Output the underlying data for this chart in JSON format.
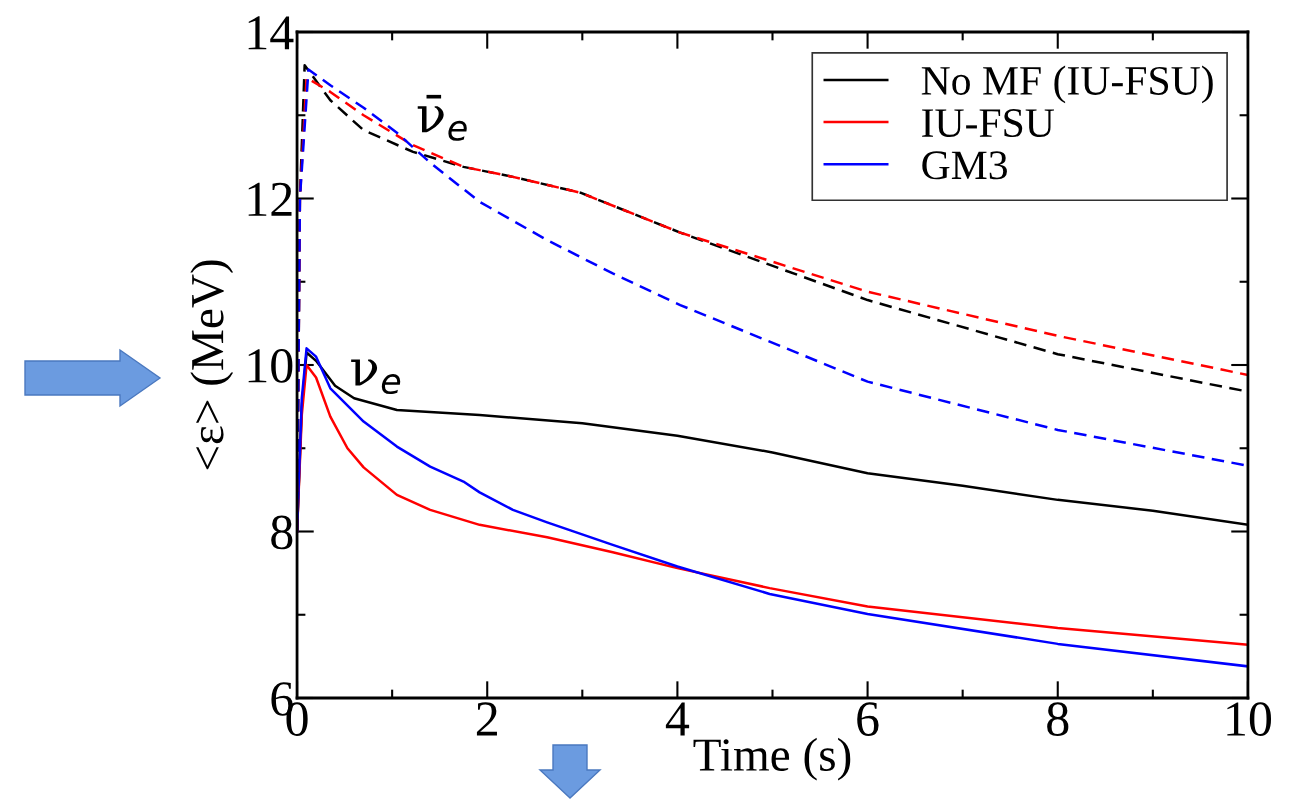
{
  "chart_data": {
    "type": "line",
    "xlabel": "Time (s)",
    "ylabel": "<ε> (MeV)",
    "xlim": [
      0,
      10
    ],
    "ylim": [
      6,
      14
    ],
    "xticks": [
      0,
      {
        "value": 1,
        "label": null
      },
      2,
      {
        "value": 3,
        "label": null
      },
      4,
      {
        "value": 5,
        "label": null
      },
      6,
      {
        "value": 7,
        "label": null
      },
      8,
      {
        "value": 9,
        "label": null
      },
      10
    ],
    "yticks": [
      6,
      {
        "value": 7,
        "label": null
      },
      8,
      {
        "value": 9,
        "label": null
      },
      10,
      {
        "value": 11,
        "label": null
      },
      12,
      {
        "value": 13,
        "label": null
      },
      14
    ],
    "grid": false,
    "legend": "top right",
    "marker": "none",
    "series": [
      {
        "name": "No MF (IU-FSU)",
        "color": "#000000",
        "line_style": "solid",
        "x": [
          0,
          0.05,
          0.1,
          0.2,
          0.4,
          0.6,
          1.05,
          1.92,
          3,
          4,
          5,
          6,
          7,
          8,
          9,
          10
        ],
        "values": [
          8.0,
          9.5,
          10.15,
          10.05,
          9.75,
          9.6,
          9.46,
          9.4,
          9.3,
          9.15,
          8.95,
          8.7,
          8.55,
          8.38,
          8.25,
          8.08
        ]
      },
      {
        "name": "IU-FSU",
        "color": "#ff0000",
        "line_style": "solid",
        "x": [
          0,
          0.05,
          0.1,
          0.2,
          0.35,
          0.53,
          0.7,
          1.05,
          1.4,
          1.92,
          2.63,
          3.32,
          4,
          4.97,
          6,
          8,
          10
        ],
        "values": [
          8.0,
          9.4,
          10.0,
          9.85,
          9.38,
          9.0,
          8.77,
          8.44,
          8.26,
          8.08,
          7.93,
          7.75,
          7.56,
          7.32,
          7.1,
          6.84,
          6.64
        ]
      },
      {
        "name": "GM3",
        "color": "#0000ff",
        "line_style": "solid",
        "x": [
          0,
          0.05,
          0.1,
          0.2,
          0.35,
          0.7,
          1.05,
          1.4,
          1.75,
          1.92,
          2.27,
          2.63,
          3.32,
          4,
          4.97,
          6,
          8,
          10
        ],
        "values": [
          8.0,
          9.6,
          10.2,
          10.1,
          9.72,
          9.32,
          9.02,
          8.78,
          8.6,
          8.47,
          8.26,
          8.11,
          7.84,
          7.58,
          7.25,
          7.01,
          6.65,
          6.38
        ]
      },
      {
        "color": "#000000",
        "line_style": "dashed",
        "x": [
          0,
          0.03,
          0.08,
          0.35,
          0.7,
          1.22,
          1.75,
          2.27,
          2.98,
          4.03,
          6,
          8,
          10
        ],
        "values": [
          8.0,
          12.0,
          13.6,
          13.18,
          12.82,
          12.56,
          12.38,
          12.26,
          12.07,
          11.59,
          10.78,
          10.13,
          9.68
        ]
      },
      {
        "color": "#ff0000",
        "line_style": "dashed",
        "x": [
          0,
          0.03,
          0.1,
          0.35,
          0.7,
          1.22,
          1.75,
          2.27,
          2.98,
          4.03,
          6,
          8,
          10
        ],
        "values": [
          8.0,
          12.0,
          13.45,
          13.28,
          13.0,
          12.64,
          12.38,
          12.26,
          12.07,
          11.59,
          10.88,
          10.35,
          9.88
        ]
      },
      {
        "color": "#0000ff",
        "line_style": "dashed",
        "x": [
          0,
          0.03,
          0.12,
          0.35,
          0.7,
          1.05,
          1.4,
          1.92,
          2.63,
          3.32,
          4.03,
          6,
          8,
          10
        ],
        "values": [
          8.0,
          12.0,
          13.55,
          13.36,
          13.09,
          12.79,
          12.43,
          11.96,
          11.5,
          11.1,
          10.72,
          9.8,
          9.22,
          8.79
        ]
      }
    ],
    "annotations": [
      "ν̄$_{e}$",
      "ν$_{e}$"
    ]
  }
}
